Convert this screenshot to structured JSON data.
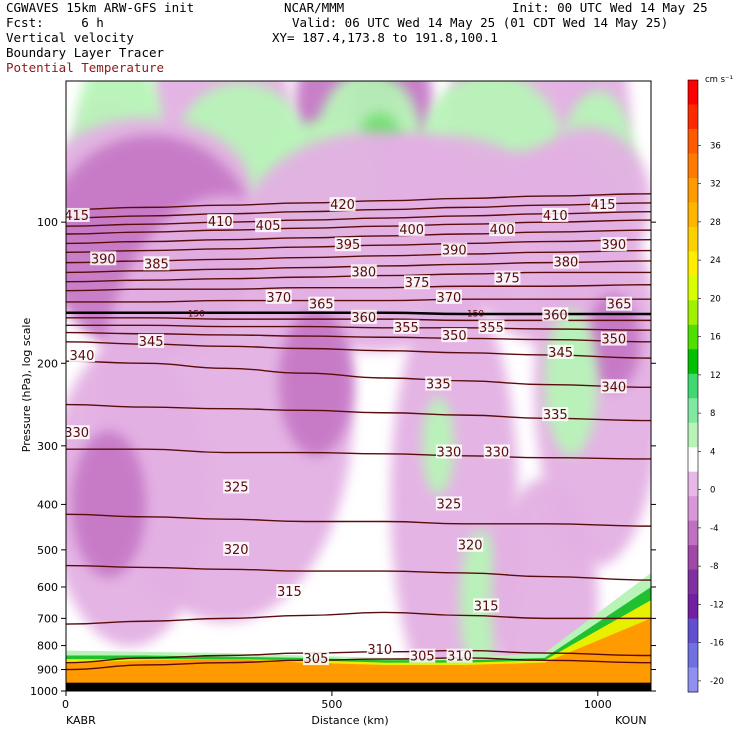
{
  "header": {
    "model": "CGWAVES 15km ARW-GFS init",
    "org": "NCAR/MMM",
    "init": "Init: 00 UTC Wed 14 May 25",
    "fcst": "Fcst:     6 h",
    "valid": "Valid: 06 UTC Wed 14 May 25 (01 CDT Wed 14 May 25)",
    "xy": "XY= 187.4,173.8 to 191.8,100.1",
    "field1": "Vertical velocity",
    "field2": "Boundary Layer Tracer",
    "field3": "Potential Temperature"
  },
  "colors": {
    "theta_line": "#5a0b0b",
    "tropopause_line": "#000000"
  },
  "chart_data": {
    "type": "heatmap",
    "xlabel": "Distance (km)",
    "ylabel": "Pressure (hPa), log scale",
    "xlim": [
      0,
      1100
    ],
    "ylim": [
      1000,
      50
    ],
    "y_log": true,
    "x_ticks": [
      0,
      500,
      1000
    ],
    "x_tick_labels": [
      "0",
      "500",
      "1000"
    ],
    "y_ticks": [
      100,
      200,
      300,
      400,
      500,
      600,
      700,
      800,
      900,
      1000
    ],
    "y_tick_labels": [
      "100",
      "200",
      "300",
      "400",
      "500",
      "600",
      "700",
      "800",
      "900",
      "1000"
    ],
    "left_station": "KABR",
    "right_station": "KOUN",
    "colorbar": {
      "units": "cm s⁻¹",
      "tick_labels": [
        "36",
        "32",
        "28",
        "24",
        "20",
        "16",
        "12",
        "8",
        "4",
        "0",
        "-4",
        "-8",
        "-12",
        "-16",
        "-20"
      ],
      "colors": [
        "#ff0000",
        "#ff2a00",
        "#ff5a00",
        "#ff7a00",
        "#ff9a00",
        "#ffb400",
        "#ffd000",
        "#ffee00",
        "#d8ff00",
        "#a0f000",
        "#50e000",
        "#00c000",
        "#40d870",
        "#80e8a0",
        "#b8f4b8",
        "#ffffff",
        "#e8b8e8",
        "#d898d8",
        "#c070c0",
        "#a048a8",
        "#8030a0",
        "#7020a0",
        "#6050d0",
        "#7070e0",
        "#9090f0"
      ]
    },
    "theta_contours": [
      {
        "value": 305,
        "pressures": [
          900,
          880,
          870,
          860,
          855,
          850,
          860,
          870
        ]
      },
      {
        "value": 310,
        "pressures": [
          870,
          850,
          840,
          830,
          825,
          820,
          830,
          840
        ]
      },
      {
        "value": 315,
        "pressures": [
          720,
          710,
          700,
          690,
          680,
          690,
          700,
          700
        ]
      },
      {
        "value": 320,
        "pressures": [
          540,
          545,
          550,
          555,
          555,
          560,
          570,
          580
        ]
      },
      {
        "value": 325,
        "pressures": [
          420,
          425,
          430,
          435,
          435,
          440,
          440,
          445
        ]
      },
      {
        "value": 330,
        "pressures": [
          305,
          305,
          310,
          310,
          312,
          315,
          318,
          320
        ]
      },
      {
        "value": 335,
        "pressures": [
          245,
          248,
          250,
          252,
          255,
          258,
          262,
          265
        ]
      },
      {
        "value": 340,
        "pressures": [
          198,
          200,
          205,
          210,
          215,
          218,
          222,
          225
        ]
      },
      {
        "value": 345,
        "pressures": [
          180,
          182,
          184,
          186,
          188,
          190,
          192,
          195
        ]
      },
      {
        "value": 350,
        "pressures": [
          172,
          173,
          174,
          175,
          176,
          177,
          178,
          180
        ]
      },
      {
        "value": 355,
        "pressures": [
          166,
          166,
          167,
          167,
          168,
          168,
          169,
          170
        ]
      },
      {
        "value": 360,
        "pressures": [
          160,
          160,
          161,
          161,
          161,
          162,
          162,
          162
        ]
      },
      {
        "value": 365,
        "pressures": [
          156,
          156,
          156,
          156,
          156,
          157,
          157,
          157
        ]
      },
      {
        "value": 370,
        "pressures": [
          148,
          148,
          147,
          147,
          147,
          146,
          146,
          146
        ]
      },
      {
        "value": 375,
        "pressures": [
          140,
          139,
          139,
          138,
          138,
          137,
          137,
          136
        ]
      },
      {
        "value": 380,
        "pressures": [
          134,
          133,
          132,
          131,
          130,
          129,
          128,
          128
        ]
      },
      {
        "value": 385,
        "pressures": [
          128,
          127,
          126,
          125,
          124,
          123,
          122,
          121
        ]
      },
      {
        "value": 390,
        "pressures": [
          122,
          121,
          120,
          119,
          118,
          117,
          116,
          115
        ]
      },
      {
        "value": 395,
        "pressures": [
          116,
          115,
          114,
          113,
          112,
          111,
          110,
          109
        ]
      },
      {
        "value": 400,
        "pressures": [
          111,
          110,
          109,
          108,
          107,
          106,
          105,
          104
        ]
      },
      {
        "value": 405,
        "pressures": [
          106,
          105,
          104,
          103,
          102,
          101,
          100,
          99
        ]
      },
      {
        "value": 410,
        "pressures": [
          102,
          101,
          100,
          99,
          98,
          97,
          96,
          95
        ]
      },
      {
        "value": 415,
        "pressures": [
          98,
          97,
          96,
          95,
          94,
          93,
          92,
          91
        ]
      },
      {
        "value": 420,
        "pressures": [
          94,
          93,
          92,
          91,
          90,
          89,
          88,
          87
        ]
      }
    ],
    "contour_x": [
      0,
      150,
      300,
      450,
      600,
      750,
      900,
      1100
    ],
    "tropopause_label": "150",
    "contour_labels": [
      {
        "text": "415",
        "x": 20,
        "p": 97
      },
      {
        "text": "410",
        "x": 290,
        "p": 100
      },
      {
        "text": "405",
        "x": 380,
        "p": 102
      },
      {
        "text": "420",
        "x": 520,
        "p": 92
      },
      {
        "text": "400",
        "x": 650,
        "p": 104
      },
      {
        "text": "400",
        "x": 820,
        "p": 104
      },
      {
        "text": "410",
        "x": 920,
        "p": 97
      },
      {
        "text": "415",
        "x": 1010,
        "p": 92
      },
      {
        "text": "390",
        "x": 70,
        "p": 120
      },
      {
        "text": "385",
        "x": 170,
        "p": 123
      },
      {
        "text": "395",
        "x": 530,
        "p": 112
      },
      {
        "text": "390",
        "x": 730,
        "p": 115
      },
      {
        "text": "380",
        "x": 940,
        "p": 122
      },
      {
        "text": "390",
        "x": 1030,
        "p": 112
      },
      {
        "text": "380",
        "x": 560,
        "p": 128
      },
      {
        "text": "375",
        "x": 660,
        "p": 135
      },
      {
        "text": "375",
        "x": 830,
        "p": 132
      },
      {
        "text": "370",
        "x": 400,
        "p": 145
      },
      {
        "text": "365",
        "x": 480,
        "p": 150
      },
      {
        "text": "370",
        "x": 720,
        "p": 145
      },
      {
        "text": "365",
        "x": 1040,
        "p": 150
      },
      {
        "text": "360",
        "x": 560,
        "p": 160
      },
      {
        "text": "360",
        "x": 920,
        "p": 158
      },
      {
        "text": "355",
        "x": 640,
        "p": 168
      },
      {
        "text": "355",
        "x": 800,
        "p": 168
      },
      {
        "text": "350",
        "x": 730,
        "p": 175
      },
      {
        "text": "350",
        "x": 1030,
        "p": 178
      },
      {
        "text": "345",
        "x": 160,
        "p": 180
      },
      {
        "text": "345",
        "x": 930,
        "p": 190
      },
      {
        "text": "340",
        "x": 30,
        "p": 193
      },
      {
        "text": "340",
        "x": 1030,
        "p": 225
      },
      {
        "text": "335",
        "x": 700,
        "p": 222
      },
      {
        "text": "335",
        "x": 920,
        "p": 258
      },
      {
        "text": "330",
        "x": 20,
        "p": 282
      },
      {
        "text": "330",
        "x": 720,
        "p": 310
      },
      {
        "text": "330",
        "x": 810,
        "p": 310
      },
      {
        "text": "325",
        "x": 320,
        "p": 368
      },
      {
        "text": "325",
        "x": 720,
        "p": 400
      },
      {
        "text": "320",
        "x": 320,
        "p": 500
      },
      {
        "text": "320",
        "x": 760,
        "p": 490
      },
      {
        "text": "315",
        "x": 420,
        "p": 615
      },
      {
        "text": "315",
        "x": 790,
        "p": 660
      },
      {
        "text": "310",
        "x": 590,
        "p": 818
      },
      {
        "text": "310",
        "x": 740,
        "p": 845
      },
      {
        "text": "305",
        "x": 470,
        "p": 855
      },
      {
        "text": "305",
        "x": 670,
        "p": 845
      }
    ],
    "blobs": [
      {
        "x": 290,
        "p": 56,
        "level": -4,
        "rx": 130,
        "rp": 0.16
      },
      {
        "x": 560,
        "p": 58,
        "level": -8,
        "rx": 130,
        "rp": 0.18
      },
      {
        "x": 580,
        "p": 57,
        "level": -12,
        "rx": 40,
        "rp": 0.06
      },
      {
        "x": 860,
        "p": 58,
        "level": -4,
        "rx": 140,
        "rp": 0.15
      },
      {
        "x": 1000,
        "p": 58,
        "level": -4,
        "rx": 60,
        "rp": 0.12
      },
      {
        "x": 80,
        "p": 66,
        "level": -4,
        "rx": 60,
        "rp": 0.06
      },
      {
        "x": 100,
        "p": 76,
        "level": 4,
        "rx": 90,
        "rp": 0.2
      },
      {
        "x": 330,
        "p": 68,
        "level": 4,
        "rx": 120,
        "rp": 0.1
      },
      {
        "x": 570,
        "p": 68,
        "level": 4,
        "rx": 100,
        "rp": 0.12
      },
      {
        "x": 590,
        "p": 68,
        "level": 8,
        "rx": 40,
        "rp": 0.05
      },
      {
        "x": 800,
        "p": 73,
        "level": 4,
        "rx": 140,
        "rp": 0.14
      },
      {
        "x": 1000,
        "p": 75,
        "level": 4,
        "rx": 70,
        "rp": 0.12
      },
      {
        "x": 150,
        "p": 86,
        "level": -4,
        "rx": 200,
        "rp": 0.12
      },
      {
        "x": 700,
        "p": 88,
        "level": -4,
        "rx": 200,
        "rp": 0.1
      },
      {
        "x": 480,
        "p": 82,
        "level": 4,
        "rx": 120,
        "rp": 0.1
      },
      {
        "x": 980,
        "p": 90,
        "level": -4,
        "rx": 120,
        "rp": 0.12
      },
      {
        "x": 160,
        "p": 112,
        "level": -8,
        "rx": 200,
        "rp": 0.18
      },
      {
        "x": 580,
        "p": 110,
        "level": -4,
        "rx": 260,
        "rp": 0.18
      },
      {
        "x": 900,
        "p": 112,
        "level": -4,
        "rx": 150,
        "rp": 0.16
      },
      {
        "x": 300,
        "p": 250,
        "level": -4,
        "rx": 240,
        "rp": 0.35
      },
      {
        "x": 470,
        "p": 220,
        "level": -8,
        "rx": 70,
        "rp": 0.12
      },
      {
        "x": 120,
        "p": 380,
        "level": -4,
        "rx": 150,
        "rp": 0.25
      },
      {
        "x": 80,
        "p": 400,
        "level": -8,
        "rx": 70,
        "rp": 0.12
      },
      {
        "x": 730,
        "p": 390,
        "level": -4,
        "rx": 120,
        "rp": 0.35
      },
      {
        "x": 1000,
        "p": 220,
        "level": -4,
        "rx": 120,
        "rp": 0.3
      },
      {
        "x": 1030,
        "p": 180,
        "level": -8,
        "rx": 50,
        "rp": 0.08
      },
      {
        "x": 950,
        "p": 220,
        "level": 4,
        "rx": 50,
        "rp": 0.12
      },
      {
        "x": 700,
        "p": 300,
        "level": 4,
        "rx": 30,
        "rp": 0.08
      },
      {
        "x": 780,
        "p": 650,
        "level": 4,
        "rx": 40,
        "rp": 0.12
      },
      {
        "x": 900,
        "p": 640,
        "level": -4,
        "rx": 100,
        "rp": 0.2
      }
    ],
    "pbl_layers": [
      {
        "level": 4,
        "top": [
          820,
          825,
          830,
          840,
          850,
          850,
          830,
          560
        ]
      },
      {
        "level": 12,
        "top": [
          840,
          840,
          845,
          850,
          860,
          860,
          850,
          600
        ]
      },
      {
        "level": 20,
        "top": [
          855,
          855,
          855,
          860,
          870,
          870,
          860,
          640
        ]
      },
      {
        "level": 28,
        "top": [
          870,
          860,
          855,
          870,
          880,
          880,
          870,
          700
        ]
      },
      {
        "level": 32,
        "top": [
          960,
          960,
          960,
          960,
          960,
          960,
          960,
          960
        ]
      }
    ]
  }
}
